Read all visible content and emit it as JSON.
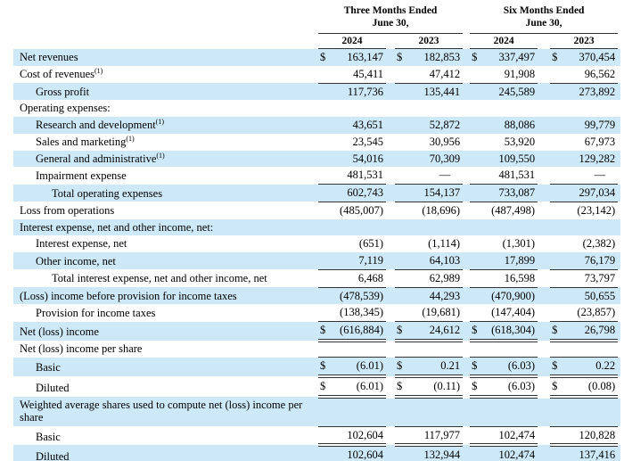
{
  "colors": {
    "row_highlight": "#cde9f7",
    "rule_color": "#333333",
    "text_color": "#000000"
  },
  "table": {
    "currency": "$",
    "periods": [
      {
        "line1": "Three Months Ended",
        "line2": "June 30,",
        "years": [
          "2024",
          "2023"
        ]
      },
      {
        "line1": "Six Months Ended",
        "line2": "June 30,",
        "years": [
          "2024",
          "2023"
        ]
      }
    ],
    "rows": [
      {
        "label": "Net revenues",
        "sup": "",
        "indent": 0,
        "shade": true,
        "dollar": true,
        "border": "none",
        "values": [
          "163,147",
          "182,853",
          "337,497",
          "370,454"
        ]
      },
      {
        "label": "Cost of revenues",
        "sup": "(1)",
        "indent": 0,
        "shade": false,
        "dollar": false,
        "border": "bottom",
        "values": [
          "45,411",
          "47,412",
          "91,908",
          "96,562"
        ]
      },
      {
        "label": "Gross profit",
        "sup": "",
        "indent": 1,
        "shade": true,
        "dollar": false,
        "border": "none",
        "values": [
          "117,736",
          "135,441",
          "245,589",
          "273,892"
        ]
      },
      {
        "label": "Operating expenses:",
        "sup": "",
        "indent": 0,
        "shade": false,
        "dollar": false,
        "border": "none",
        "values": null
      },
      {
        "label": "Research and development",
        "sup": "(1)",
        "indent": 1,
        "shade": true,
        "dollar": false,
        "border": "none",
        "values": [
          "43,651",
          "52,872",
          "88,086",
          "99,779"
        ]
      },
      {
        "label": "Sales and marketing",
        "sup": "(1)",
        "indent": 1,
        "shade": false,
        "dollar": false,
        "border": "none",
        "values": [
          "23,545",
          "30,956",
          "53,920",
          "67,973"
        ]
      },
      {
        "label": "General and administrative",
        "sup": "(1)",
        "indent": 1,
        "shade": true,
        "dollar": false,
        "border": "none",
        "values": [
          "54,016",
          "70,309",
          "109,550",
          "129,282"
        ]
      },
      {
        "label": "Impairment expense",
        "sup": "",
        "indent": 1,
        "shade": false,
        "dollar": false,
        "border": "bottom",
        "values": [
          "481,531",
          "—",
          "481,531",
          "—"
        ]
      },
      {
        "label": "Total operating expenses",
        "sup": "",
        "indent": 2,
        "shade": true,
        "dollar": false,
        "border": "bottom",
        "values": [
          "602,743",
          "154,137",
          "733,087",
          "297,034"
        ]
      },
      {
        "label": "Loss from operations",
        "sup": "",
        "indent": 0,
        "shade": false,
        "dollar": false,
        "border": "none",
        "values": [
          "(485,007)",
          "(18,696)",
          "(487,498)",
          "(23,142)"
        ]
      },
      {
        "label": "Interest expense, net and other income, net:",
        "sup": "",
        "indent": 0,
        "shade": true,
        "dollar": false,
        "border": "none",
        "values": null
      },
      {
        "label": "Interest expense, net",
        "sup": "",
        "indent": 1,
        "shade": false,
        "dollar": false,
        "border": "none",
        "values": [
          "(651)",
          "(1,114)",
          "(1,301)",
          "(2,382)"
        ]
      },
      {
        "label": "Other income, net",
        "sup": "",
        "indent": 1,
        "shade": true,
        "dollar": false,
        "border": "bottom",
        "values": [
          "7,119",
          "64,103",
          "17,899",
          "76,179"
        ]
      },
      {
        "label": "Total interest expense, net and other income, net",
        "sup": "",
        "indent": 2,
        "shade": false,
        "dollar": false,
        "border": "bottom",
        "values": [
          "6,468",
          "62,989",
          "16,598",
          "73,797"
        ]
      },
      {
        "label": "(Loss) income before provision for income taxes",
        "sup": "",
        "indent": 0,
        "shade": true,
        "dollar": false,
        "border": "none",
        "values": [
          "(478,539)",
          "44,293",
          "(470,900)",
          "50,655"
        ]
      },
      {
        "label": "Provision for income taxes",
        "sup": "",
        "indent": 1,
        "shade": false,
        "dollar": false,
        "border": "bottom",
        "values": [
          "(138,345)",
          "(19,681)",
          "(147,404)",
          "(23,857)"
        ]
      },
      {
        "label": "Net (loss) income",
        "sup": "",
        "indent": 0,
        "shade": true,
        "dollar": true,
        "border": "double",
        "values": [
          "(616,884)",
          "24,612",
          "(618,304)",
          "26,798"
        ]
      },
      {
        "label": "Net (loss) income per share",
        "sup": "",
        "indent": 0,
        "shade": false,
        "dollar": false,
        "border": "none",
        "values": null
      },
      {
        "label": "Basic",
        "sup": "",
        "indent": 1,
        "shade": true,
        "dollar": true,
        "border": "top-double",
        "values": [
          "(6.01)",
          "0.21",
          "(6.03)",
          "0.22"
        ]
      },
      {
        "label": "Diluted",
        "sup": "",
        "indent": 1,
        "shade": false,
        "dollar": true,
        "border": "double",
        "values": [
          "(6.01)",
          "(0.11)",
          "(6.03)",
          "(0.08)"
        ]
      },
      {
        "label": "Weighted average shares used to compute net (loss) income per share",
        "sup": "",
        "indent": 0,
        "shade": true,
        "dollar": false,
        "border": "none",
        "values": null
      },
      {
        "label": "Basic",
        "sup": "",
        "indent": 1,
        "shade": false,
        "dollar": false,
        "border": "top-double",
        "values": [
          "102,604",
          "117,977",
          "102,474",
          "120,828"
        ]
      },
      {
        "label": "Diluted",
        "sup": "",
        "indent": 1,
        "shade": true,
        "dollar": false,
        "border": "double",
        "values": [
          "102,604",
          "132,944",
          "102,474",
          "137,416"
        ]
      }
    ]
  }
}
